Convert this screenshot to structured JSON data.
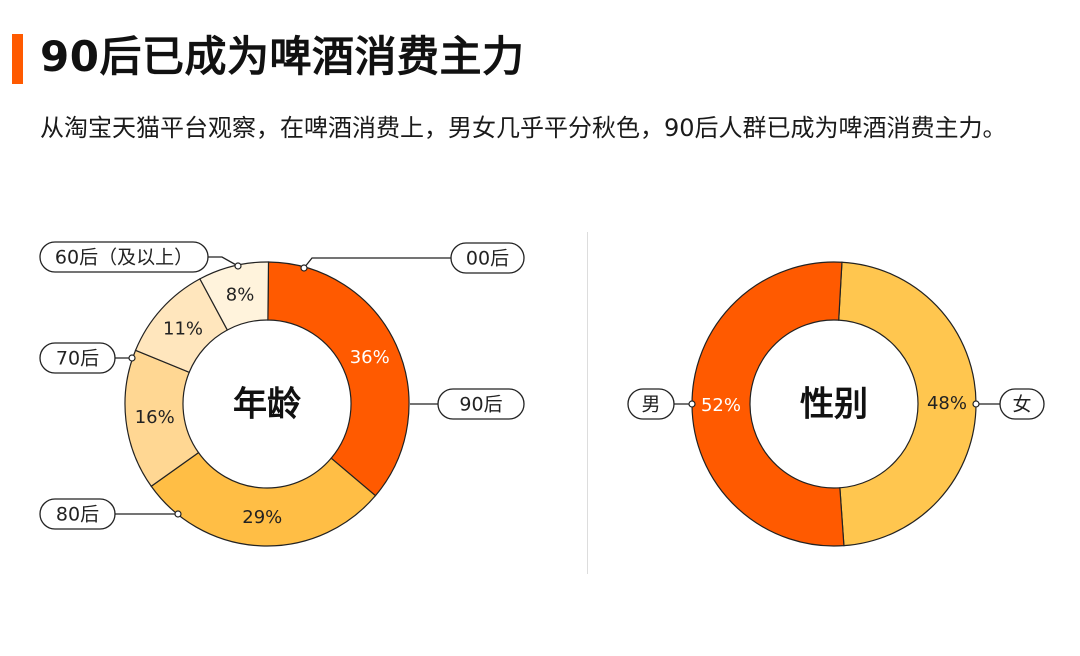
{
  "header": {
    "title": "90后已成为啤酒消费主力",
    "description": "从淘宝天猫平台观察，在啤酒消费上，男女几乎平分秋色，90后人群已成为啤酒消费主力。"
  },
  "chart_data": [
    {
      "type": "pie",
      "center_label": "年龄",
      "slices": [
        {
          "label": "90后",
          "value": 36,
          "value_label": "36%",
          "color": "#ff5a00",
          "text_color": "#ffffff"
        },
        {
          "label": "80后",
          "value": 29,
          "value_label": "29%",
          "color": "#ffbe45",
          "text_color": "#222222"
        },
        {
          "label": "70后",
          "value": 16,
          "value_label": "16%",
          "color": "#ffd793",
          "text_color": "#222222"
        },
        {
          "label": "60后（及以上）",
          "value": 11,
          "value_label": "11%",
          "color": "#ffe6bd",
          "text_color": "#222222"
        },
        {
          "label": "00后",
          "value": 8,
          "value_label": "8%",
          "color": "#fff3dc",
          "text_color": "#222222"
        }
      ]
    },
    {
      "type": "pie",
      "center_label": "性别",
      "slices": [
        {
          "label": "女",
          "value": 48,
          "value_label": "48%",
          "color": "#ffc64f",
          "text_color": "#222222"
        },
        {
          "label": "男",
          "value": 52,
          "value_label": "52%",
          "color": "#ff5a00",
          "text_color": "#ffffff"
        }
      ]
    }
  ]
}
